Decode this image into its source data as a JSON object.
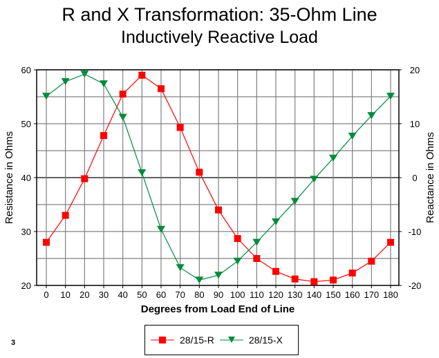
{
  "chart_data": {
    "type": "line",
    "title": "R and X Transformation: 35-Ohm Line",
    "subtitle": "Inductively Reactive Load",
    "xlabel": "Degrees from Load End of Line",
    "ylabel": "Resistance in Ohms",
    "y2label": "Reactance in Ohms",
    "x": [
      0,
      10,
      20,
      30,
      40,
      50,
      60,
      70,
      80,
      90,
      100,
      110,
      120,
      130,
      140,
      150,
      160,
      170,
      180
    ],
    "ylim": [
      20,
      60
    ],
    "y2lim": [
      -20,
      20
    ],
    "yticks": [
      20,
      30,
      40,
      50,
      60
    ],
    "y2ticks": [
      -20,
      -10,
      0,
      10,
      20
    ],
    "grid": true,
    "legend_position": "bottom",
    "series": [
      {
        "name": "28/15-R",
        "axis": "left",
        "color": "#ff0000",
        "marker": "square",
        "values": [
          28,
          33,
          39.8,
          47.8,
          55.5,
          59,
          56.5,
          49.3,
          41,
          34,
          28.7,
          25,
          22.6,
          21.2,
          20.7,
          21,
          22.3,
          24.5,
          28
        ]
      },
      {
        "name": "28/15-X",
        "axis": "right",
        "color": "#008c3c",
        "marker": "triangle-down",
        "values": [
          15.1,
          17.8,
          19.2,
          17.4,
          11.2,
          0.9,
          -9.6,
          -16.7,
          -19,
          -18.1,
          -15.5,
          -12,
          -8.2,
          -4.4,
          -0.3,
          3.6,
          7.7,
          11.5,
          15.1
        ]
      }
    ]
  },
  "page_number": "3"
}
